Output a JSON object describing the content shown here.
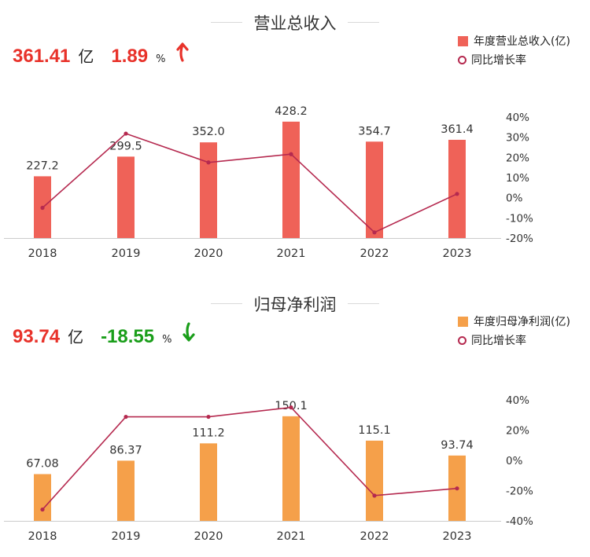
{
  "colors": {
    "revenue_bar": "#ef6258",
    "profit_bar": "#f5a04a",
    "growth_line": "#b5294f",
    "up": "#e8322a",
    "down": "#1a9e1a"
  },
  "revenue": {
    "title": "营业总收入",
    "value": "361.41",
    "unit": "亿",
    "growth": "1.89",
    "growth_unit": "%",
    "trend_icon": "arrow-up-icon",
    "legend_bar": "年度营业总收入(亿)",
    "legend_line": "同比增长率"
  },
  "profit": {
    "title": "归母净利润",
    "value": "93.74",
    "unit": "亿",
    "growth": "-18.55",
    "growth_unit": "%",
    "trend_icon": "arrow-down-icon",
    "legend_bar": "年度归母净利润(亿)",
    "legend_line": "同比增长率"
  },
  "chart_data": [
    {
      "type": "bar",
      "categories": [
        "2018",
        "2019",
        "2020",
        "2021",
        "2022",
        "2023"
      ],
      "series": [
        {
          "name": "年度营业总收入(亿)",
          "values": [
            227.2,
            299.5,
            352.0,
            428.2,
            354.7,
            361.4
          ],
          "labels": [
            "227.2",
            "299.5",
            "352.0",
            "428.2",
            "354.7",
            "361.4"
          ]
        },
        {
          "name": "同比增长率",
          "type": "line",
          "axis": "right",
          "values": [
            -5.0,
            31.8,
            17.5,
            21.6,
            -17.2,
            1.9
          ]
        }
      ],
      "right_axis": {
        "ticks": [
          "40%",
          "30%",
          "20%",
          "10%",
          "0%",
          "-10%",
          "-20%"
        ],
        "range": [
          -20,
          40
        ]
      },
      "bar_axis_max": 500
    },
    {
      "type": "bar",
      "categories": [
        "2018",
        "2019",
        "2020",
        "2021",
        "2022",
        "2023"
      ],
      "series": [
        {
          "name": "年度归母净利润(亿)",
          "values": [
            67.08,
            86.37,
            111.2,
            150.1,
            115.1,
            93.74
          ],
          "labels": [
            "67.08",
            "86.37",
            "111.2",
            "150.1",
            "115.1",
            "93.74"
          ]
        },
        {
          "name": "同比增长率",
          "type": "line",
          "axis": "right",
          "values": [
            -32.5,
            28.8,
            28.8,
            35.0,
            -23.3,
            -18.55
          ]
        }
      ],
      "right_axis": {
        "ticks": [
          "40%",
          "20%",
          "0%",
          "-20%",
          "-40%"
        ],
        "range": [
          -40,
          40
        ]
      },
      "bar_axis_max": 195
    }
  ]
}
